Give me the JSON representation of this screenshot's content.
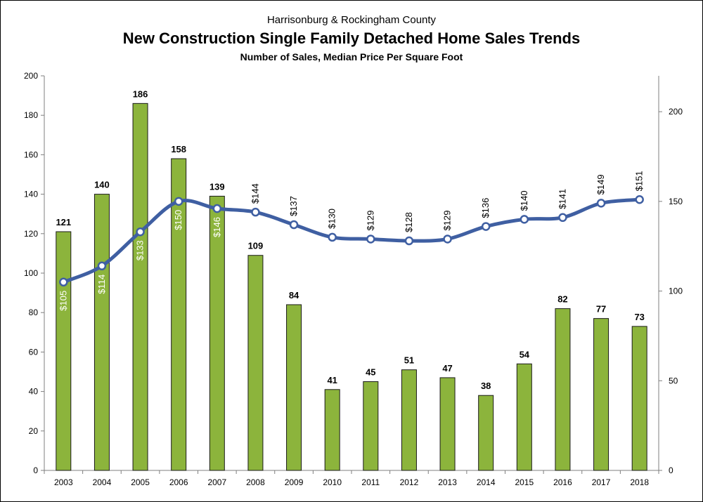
{
  "header": {
    "supertitle": "Harrisonburg & Rockingham County",
    "title": "New Construction Single Family Detached Home Sales Trends",
    "subtitle": "Number of Sales, Median Price Per Square Foot"
  },
  "chart_data": {
    "type": "bar",
    "categories": [
      "2003",
      "2004",
      "2005",
      "2006",
      "2007",
      "2008",
      "2009",
      "2010",
      "2011",
      "2012",
      "2013",
      "2014",
      "2015",
      "2016",
      "2017",
      "2018"
    ],
    "series": [
      {
        "type": "bar",
        "axis": "left",
        "color": "#8cb43c",
        "values": [
          121,
          140,
          186,
          158,
          139,
          109,
          84,
          41,
          45,
          51,
          47,
          38,
          54,
          82,
          77,
          73
        ],
        "labels": [
          "121",
          "140",
          "186",
          "158",
          "139",
          "109",
          "84",
          "41",
          "45",
          "51",
          "47",
          "38",
          "54",
          "82",
          "77",
          "73"
        ]
      },
      {
        "type": "line",
        "axis": "right",
        "color": "#3f5fa2",
        "values": [
          105,
          114,
          133,
          150,
          146,
          144,
          137,
          130,
          129,
          128,
          129,
          136,
          140,
          141,
          149,
          151
        ],
        "labels": [
          "$105",
          "$114",
          "$133",
          "$150",
          "$146",
          "$144",
          "$137",
          "$130",
          "$129",
          "$128",
          "$129",
          "$136",
          "$140",
          "$141",
          "$149",
          "$151"
        ]
      }
    ],
    "y_left": {
      "min": 0,
      "max": 200,
      "ticks": [
        "0",
        "20",
        "40",
        "60",
        "80",
        "100",
        "120",
        "140",
        "160",
        "180",
        "200"
      ]
    },
    "y_right": {
      "min": 0,
      "max": 220,
      "ticks": [
        "0",
        "50",
        "100",
        "150",
        "200"
      ]
    },
    "grid": false
  }
}
